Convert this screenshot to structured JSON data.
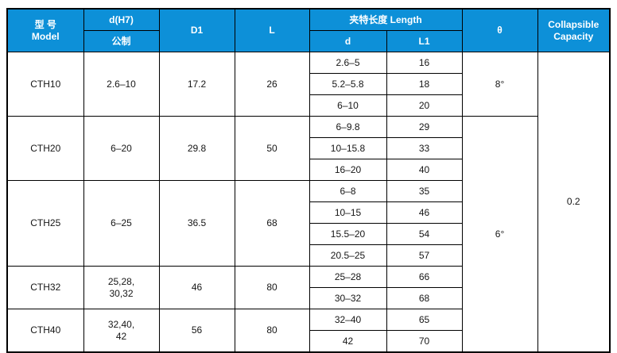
{
  "header": {
    "model": "型 号\nModel",
    "d_h7": "d(H7)",
    "metric": "公制",
    "d1": "D1",
    "l": "L",
    "length": "夹特长度 Length",
    "length_d": "d",
    "length_l1": "L1",
    "theta": "θ",
    "collapsible": "Collapsible\nCapacity"
  },
  "groups": [
    {
      "model": "CTH10",
      "d_range": "2.6–10",
      "d1": "17.2",
      "l": "26",
      "sub": [
        {
          "d": "2.6–5",
          "l1": "16"
        },
        {
          "d": "5.2–5.8",
          "l1": "18"
        },
        {
          "d": "6–10",
          "l1": "20"
        }
      ]
    },
    {
      "model": "CTH20",
      "d_range": "6–20",
      "d1": "29.8",
      "l": "50",
      "sub": [
        {
          "d": "6–9.8",
          "l1": "29"
        },
        {
          "d": "10–15.8",
          "l1": "33"
        },
        {
          "d": "16–20",
          "l1": "40"
        }
      ]
    },
    {
      "model": "CTH25",
      "d_range": "6–25",
      "d1": "36.5",
      "l": "68",
      "sub": [
        {
          "d": "6–8",
          "l1": "35"
        },
        {
          "d": "10–15",
          "l1": "46"
        },
        {
          "d": "15.5–20",
          "l1": "54"
        },
        {
          "d": "20.5–25",
          "l1": "57"
        }
      ]
    },
    {
      "model": "CTH32",
      "d_range": "25,28,\n30,32",
      "d1": "46",
      "l": "80",
      "sub": [
        {
          "d": "25–28",
          "l1": "66"
        },
        {
          "d": "30–32",
          "l1": "68"
        }
      ]
    },
    {
      "model": "CTH40",
      "d_range": "32,40,\n42",
      "d1": "56",
      "l": "80",
      "sub": [
        {
          "d": "32–40",
          "l1": "65"
        },
        {
          "d": "42",
          "l1": "70"
        }
      ]
    }
  ],
  "theta_values": [
    {
      "value": "8°"
    },
    {
      "value": "6°"
    }
  ],
  "collapsible_capacity": "0.2",
  "colors": {
    "header_blue": "#0d90d8",
    "row_cream": "#fbf1d0",
    "border": "#000000",
    "text": "#161616"
  }
}
